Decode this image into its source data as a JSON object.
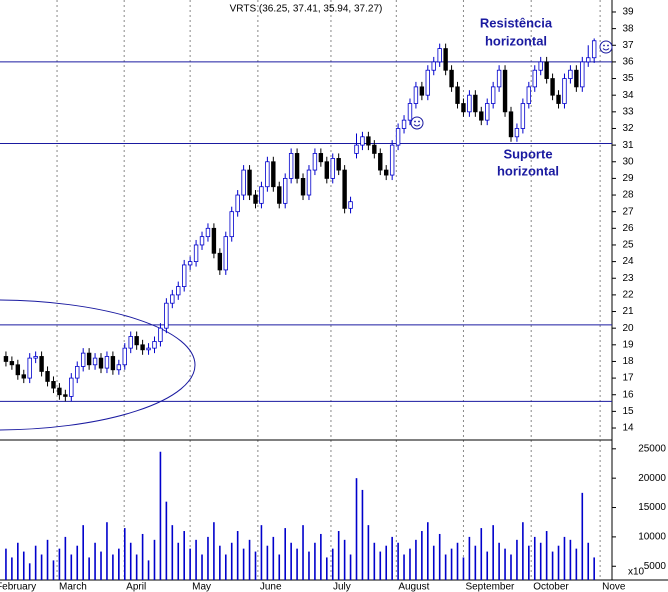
{
  "chart_data": {
    "type": "candlestick",
    "title": "VRTS (36.25, 37.41, 35.94, 37.27)",
    "open": [
      18.3,
      18.0,
      17.8,
      17.2,
      17.0,
      18.2,
      18.3,
      17.4,
      16.8,
      16.4,
      16.0,
      15.9,
      17.0,
      17.7,
      18.5,
      17.8,
      18.2,
      17.6,
      18.3,
      17.5,
      17.8,
      18.8,
      19.5,
      19.0,
      18.7,
      18.8,
      19.2,
      20.0,
      21.5,
      22.0,
      22.5,
      23.8,
      24.0,
      25.0,
      25.5,
      26.0,
      24.5,
      23.5,
      25.5,
      27.0,
      28.0,
      29.5,
      28.0,
      27.5,
      28.5,
      30.0,
      28.5,
      27.5,
      29.0,
      30.5,
      29.0,
      28.0,
      29.5,
      30.5,
      30.0,
      29.0,
      30.2,
      29.5,
      27.2,
      30.5,
      31.0,
      31.5,
      31.0,
      30.5,
      29.5,
      29.2,
      31.0,
      32.0,
      32.5,
      33.5,
      34.5,
      34.0,
      35.5,
      36.0,
      36.8,
      35.5,
      34.5,
      33.5,
      33.0,
      34.0,
      33.0,
      32.5,
      33.5,
      34.5,
      35.5,
      33.0,
      31.5,
      32.0,
      33.5,
      34.5,
      35.5,
      36.0,
      35.0,
      34.0,
      33.5,
      35.0,
      35.5,
      34.5,
      36.0,
      36.25
    ],
    "high": [
      18.6,
      18.3,
      18.1,
      17.5,
      18.5,
      18.6,
      18.6,
      17.7,
      17.1,
      16.7,
      16.3,
      17.3,
      18.0,
      18.8,
      18.8,
      18.5,
      18.5,
      18.6,
      18.6,
      18.1,
      19.1,
      19.8,
      19.8,
      19.3,
      19.1,
      19.5,
      20.3,
      21.8,
      22.3,
      22.8,
      24.1,
      24.3,
      25.3,
      25.8,
      26.3,
      26.3,
      24.8,
      25.8,
      27.3,
      28.3,
      29.8,
      29.8,
      28.3,
      28.8,
      30.3,
      30.3,
      28.8,
      29.3,
      30.8,
      30.8,
      29.3,
      29.8,
      30.8,
      30.8,
      30.3,
      30.5,
      30.5,
      29.8,
      27.9,
      31.7,
      31.8,
      31.8,
      31.3,
      30.8,
      29.8,
      31.3,
      32.3,
      32.8,
      33.8,
      34.8,
      34.8,
      35.8,
      36.3,
      37.1,
      37.1,
      35.8,
      34.8,
      33.8,
      34.3,
      34.3,
      33.3,
      33.8,
      34.8,
      35.8,
      35.8,
      33.3,
      32.3,
      33.8,
      34.8,
      35.8,
      36.3,
      36.3,
      35.3,
      34.3,
      35.3,
      35.8,
      35.8,
      36.3,
      37.0,
      37.41
    ],
    "low": [
      17.7,
      17.5,
      16.9,
      16.7,
      16.7,
      17.9,
      17.1,
      16.5,
      16.1,
      15.7,
      15.6,
      15.6,
      16.7,
      17.4,
      17.5,
      17.5,
      17.3,
      17.3,
      17.2,
      17.2,
      17.5,
      18.5,
      18.7,
      18.4,
      18.4,
      18.5,
      18.9,
      19.7,
      21.2,
      21.7,
      22.2,
      23.5,
      23.7,
      24.7,
      25.2,
      24.2,
      23.2,
      23.2,
      25.2,
      26.7,
      27.7,
      27.7,
      27.2,
      27.2,
      28.2,
      28.2,
      27.2,
      27.2,
      28.7,
      28.7,
      27.7,
      27.7,
      29.2,
      29.7,
      28.7,
      28.7,
      29.2,
      26.9,
      26.9,
      30.2,
      30.7,
      30.7,
      30.2,
      29.2,
      28.9,
      28.9,
      30.7,
      31.7,
      32.2,
      33.2,
      33.7,
      33.7,
      35.2,
      35.7,
      35.2,
      34.2,
      33.2,
      32.7,
      32.7,
      32.7,
      32.2,
      32.2,
      33.2,
      34.2,
      32.7,
      31.2,
      31.2,
      31.7,
      33.2,
      34.2,
      35.2,
      34.7,
      33.7,
      33.2,
      33.2,
      34.7,
      34.2,
      34.2,
      35.7,
      35.94
    ],
    "close": [
      18.0,
      17.8,
      17.2,
      17.0,
      18.2,
      18.3,
      17.4,
      16.8,
      16.4,
      16.0,
      15.9,
      17.0,
      17.7,
      18.5,
      17.8,
      18.2,
      17.6,
      18.3,
      17.5,
      17.8,
      18.8,
      19.5,
      19.0,
      18.7,
      18.8,
      19.2,
      20.0,
      21.5,
      22.0,
      22.5,
      23.8,
      24.0,
      25.0,
      25.5,
      26.0,
      24.5,
      23.5,
      25.5,
      27.0,
      28.0,
      29.5,
      28.0,
      27.5,
      28.5,
      30.0,
      28.5,
      27.5,
      29.0,
      30.5,
      29.0,
      28.0,
      29.5,
      30.5,
      30.0,
      29.0,
      30.2,
      29.5,
      27.2,
      27.6,
      31.0,
      31.5,
      31.0,
      30.5,
      29.5,
      29.2,
      31.0,
      32.0,
      32.5,
      33.5,
      34.5,
      34.0,
      35.5,
      36.0,
      36.8,
      35.5,
      34.5,
      33.5,
      33.0,
      34.0,
      33.0,
      32.5,
      33.5,
      34.5,
      35.5,
      33.0,
      31.5,
      32.0,
      33.5,
      34.5,
      35.5,
      36.0,
      35.0,
      34.0,
      33.5,
      35.0,
      35.5,
      34.5,
      36.0,
      36.25,
      37.27
    ],
    "volume": [
      8000,
      6500,
      9000,
      7500,
      5500,
      8500,
      7000,
      9500,
      6000,
      8000,
      10000,
      7000,
      8500,
      12000,
      6500,
      9000,
      7500,
      12500,
      7000,
      8000,
      11500,
      9000,
      7000,
      10500,
      6000,
      9500,
      24500,
      16000,
      12000,
      9000,
      11000,
      8000,
      9500,
      7000,
      10000,
      12500,
      8500,
      7000,
      9000,
      11000,
      8000,
      9500,
      7500,
      12000,
      8500,
      10000,
      7000,
      11500,
      9000,
      8000,
      12000,
      7500,
      9000,
      10500,
      6500,
      8000,
      11000,
      9500,
      7000,
      20000,
      18000,
      12000,
      9000,
      7500,
      8500,
      10000,
      9000,
      7000,
      8000,
      9500,
      11000,
      12500,
      8500,
      10500,
      7000,
      8000,
      9000,
      6500,
      10000,
      8500,
      11500,
      7500,
      12000,
      9000,
      8000,
      7000,
      9500,
      12500,
      8500,
      10000,
      9000,
      11000,
      7500,
      8500,
      10000,
      9500,
      8000,
      17500,
      9000,
      6500
    ],
    "up_color": "#0000cc",
    "down_color": "#000000",
    "volume_color": "#0000cc",
    "ylim": [
      13.28,
      39.72
    ],
    "yticks": [
      14,
      15,
      16,
      17,
      18,
      19,
      20,
      21,
      22,
      23,
      24,
      25,
      26,
      27,
      28,
      29,
      30,
      31,
      32,
      33,
      34,
      35,
      36,
      37,
      38,
      39
    ],
    "volume_lim": [
      3000,
      26500
    ],
    "volume_ticks": [
      5000,
      10000,
      15000,
      20000,
      25000
    ],
    "volume_unit_label": "x10",
    "xlim": [
      -1,
      102
    ],
    "xticks": [
      {
        "value": -2,
        "label": "February"
      },
      {
        "value": 8.6,
        "label": "March"
      },
      {
        "value": 19.9,
        "label": "April"
      },
      {
        "value": 31,
        "label": "May"
      },
      {
        "value": 42.4,
        "label": "June"
      },
      {
        "value": 54.7,
        "label": "July"
      },
      {
        "value": 65.7,
        "label": "August"
      },
      {
        "value": 77,
        "label": "September"
      },
      {
        "value": 88.4,
        "label": "October"
      },
      {
        "value": 100,
        "label": "Nove"
      }
    ],
    "horizontal_lines": [
      36.0,
      31.1,
      20.2,
      15.6
    ],
    "line_color": "#1a1aa0",
    "annotations": [
      [
        "Resistência",
        "horizontal"
      ],
      [
        "Suporte",
        "horizontal"
      ]
    ]
  }
}
